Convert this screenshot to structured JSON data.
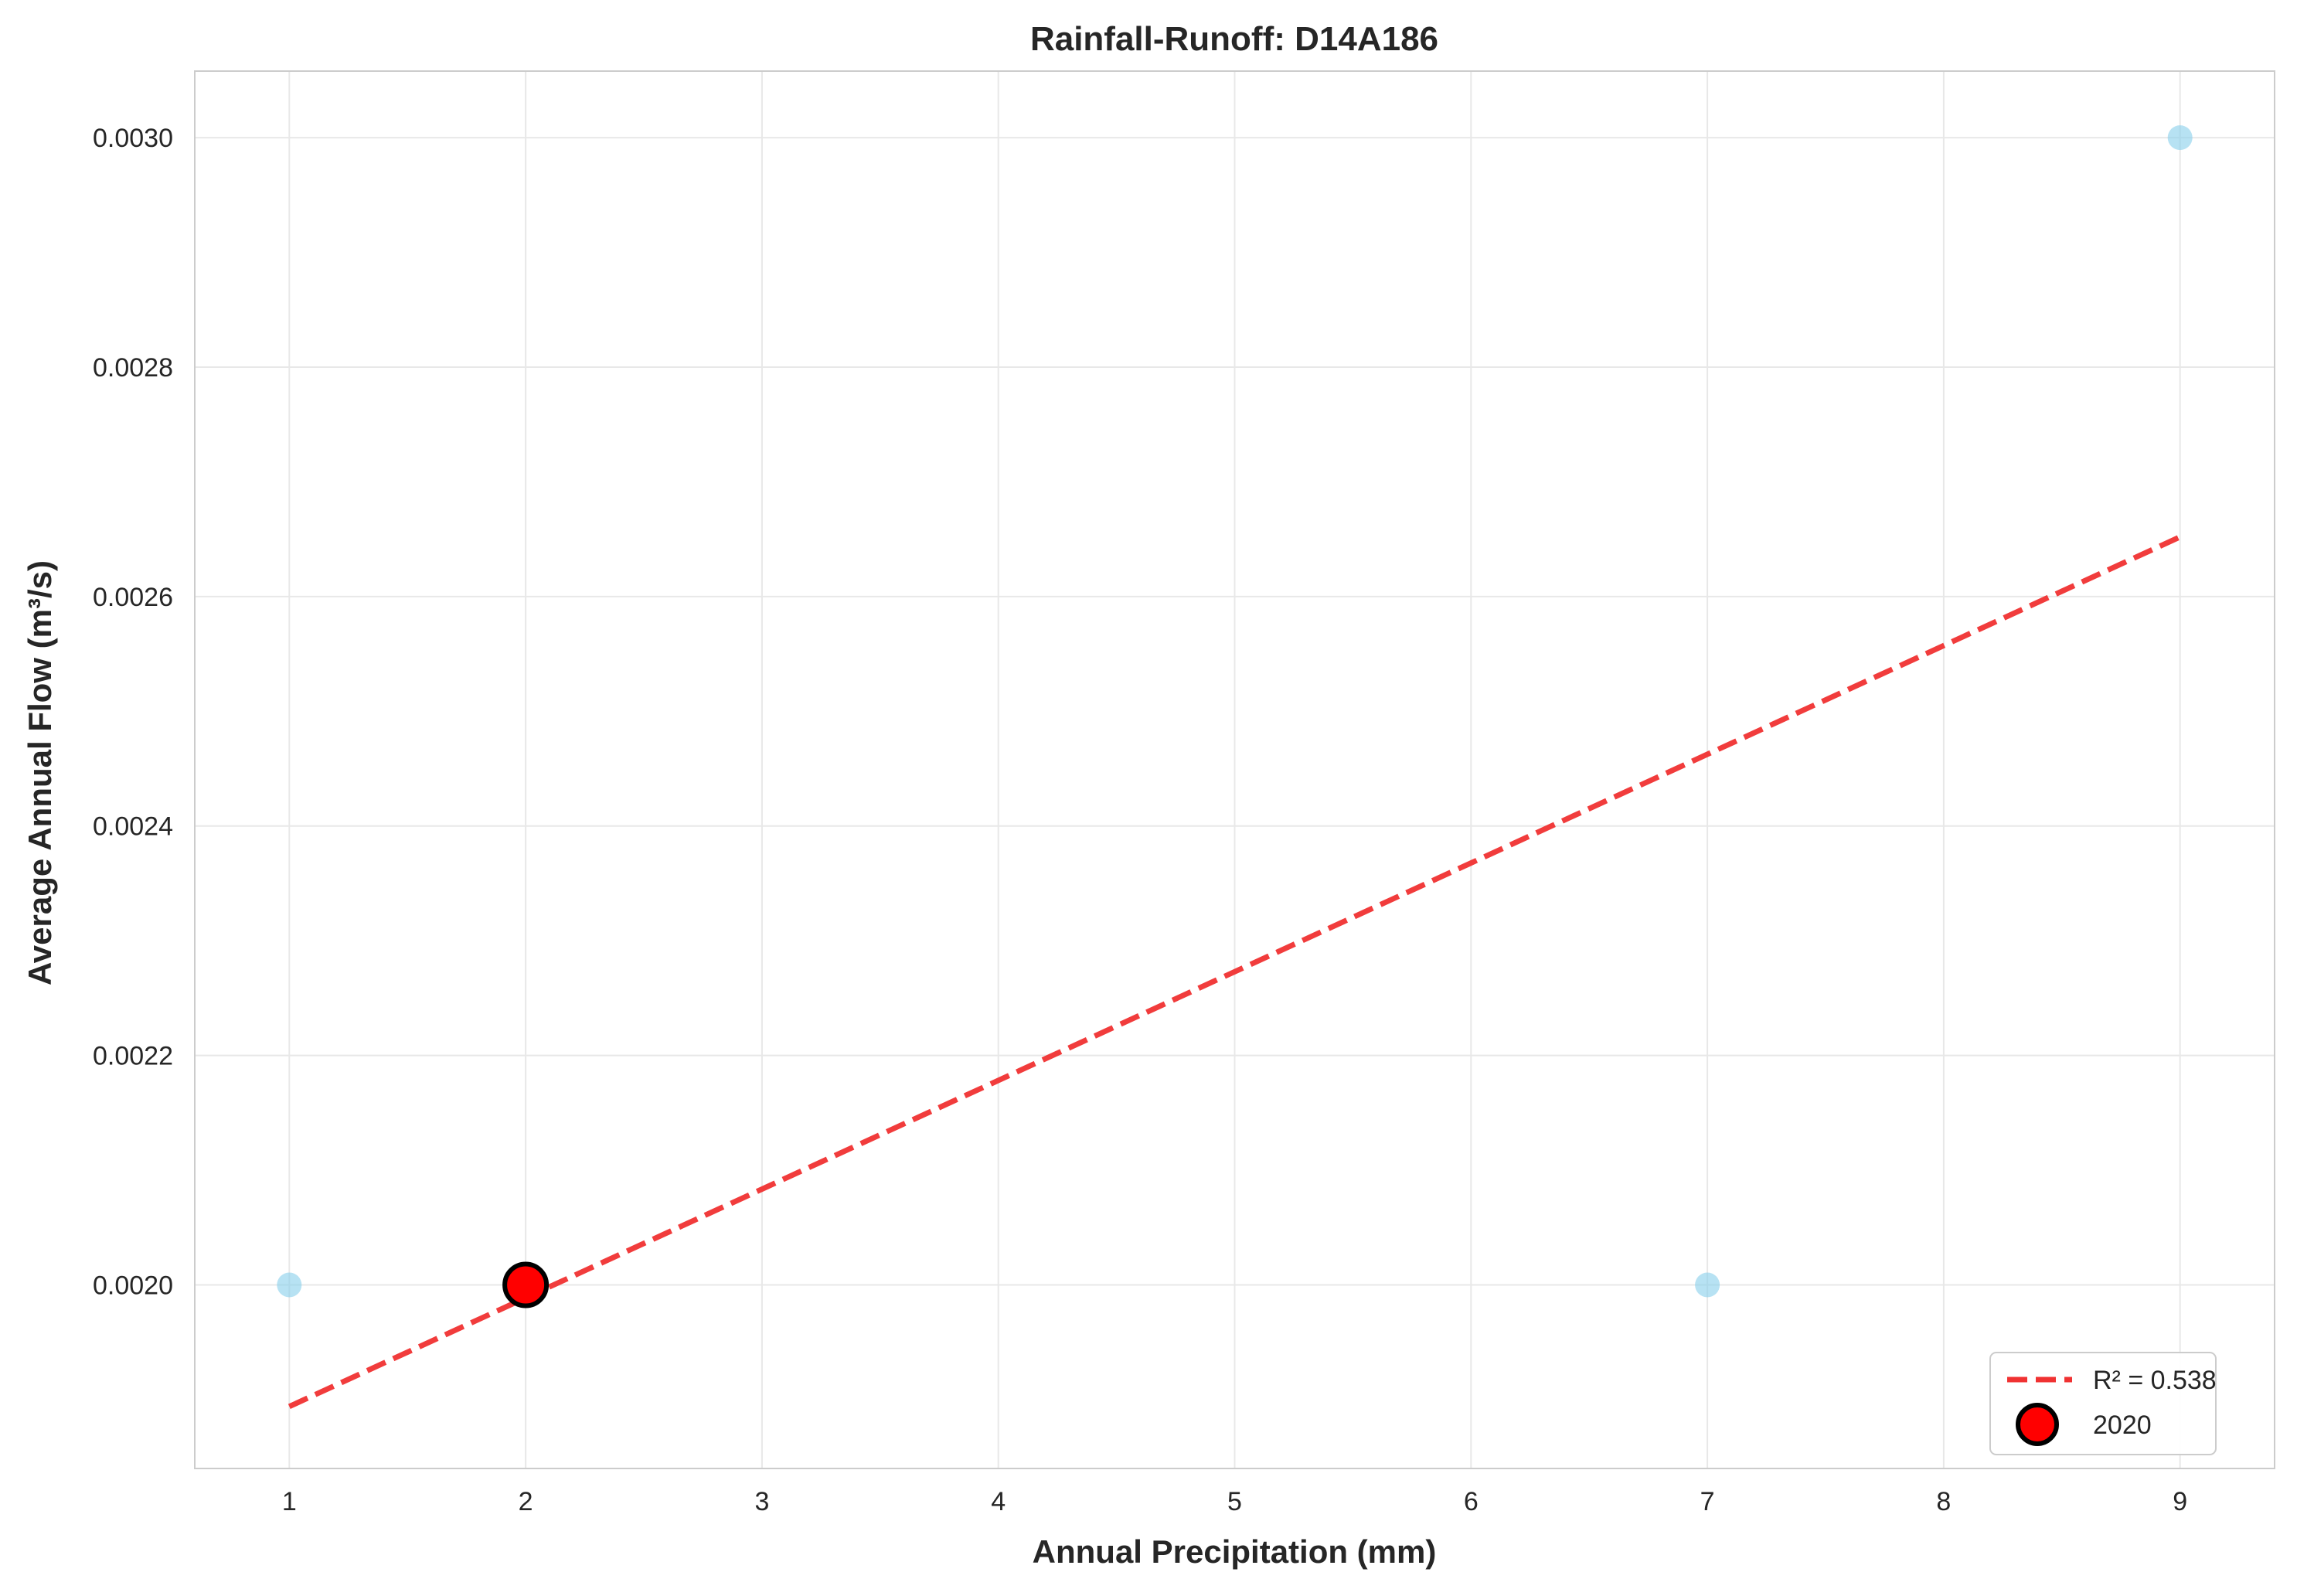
{
  "chart_data": {
    "type": "scatter",
    "title": "Rainfall-Runoff: D14A186",
    "xlabel": "Annual Precipitation (mm)",
    "ylabel": "Average Annual Flow (m³/s)",
    "xlim": [
      0.6,
      9.4
    ],
    "ylim": [
      0.00184,
      0.003058
    ],
    "x_ticks": [
      1,
      2,
      3,
      4,
      5,
      6,
      7,
      8,
      9
    ],
    "x_tick_labels": [
      "1",
      "2",
      "3",
      "4",
      "5",
      "6",
      "7",
      "8",
      "9"
    ],
    "y_ticks": [
      0.002,
      0.0022,
      0.0024,
      0.0026,
      0.0028,
      0.003
    ],
    "y_tick_labels": [
      "0.0020",
      "0.0022",
      "0.0024",
      "0.0026",
      "0.0028",
      "0.0030"
    ],
    "grid": true,
    "legend_position": "bottom-right",
    "series": [
      {
        "kind": "points",
        "color": "#87ceeb",
        "points": [
          {
            "x": 1,
            "y": 0.002
          },
          {
            "x": 7,
            "y": 0.002
          },
          {
            "x": 9,
            "y": 0.003
          }
        ]
      },
      {
        "name": "R² = 0.538",
        "kind": "trendline",
        "color": "#f03232",
        "style": "dashed",
        "points": [
          {
            "x": 1,
            "y": 0.001894
          },
          {
            "x": 9,
            "y": 0.002652
          }
        ]
      },
      {
        "name": "2020",
        "kind": "highlight",
        "color": "#ff0000",
        "edge_color": "#000000",
        "points": [
          {
            "x": 2,
            "y": 0.002
          }
        ]
      }
    ]
  }
}
